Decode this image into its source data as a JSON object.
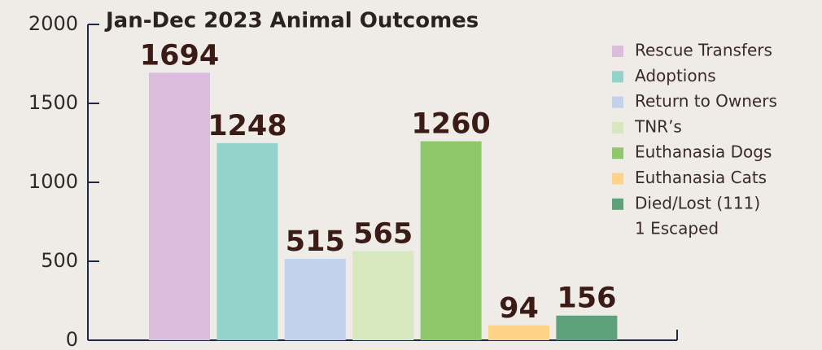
{
  "chart_data": {
    "type": "bar",
    "title": "Jan-Dec 2023 Animal Outcomes",
    "categories": [
      "Rescue Transfers",
      "Adoptions",
      "Return to Owners",
      "TNR’s",
      "Euthanasia Dogs",
      "Euthanasia Cats",
      "Died/Lost (111)"
    ],
    "values": [
      1694,
      1248,
      515,
      565,
      1260,
      94,
      156
    ],
    "colors": [
      "#dbbcdc",
      "#93d3cb",
      "#c2d2ec",
      "#d8e8be",
      "#8ec86a",
      "#fdd388",
      "#5ea27c"
    ],
    "legend_note": "1 Escaped",
    "ylim": [
      0,
      2000
    ],
    "yticks": [
      0,
      500,
      1000,
      1500,
      2000
    ],
    "legend": "right"
  }
}
